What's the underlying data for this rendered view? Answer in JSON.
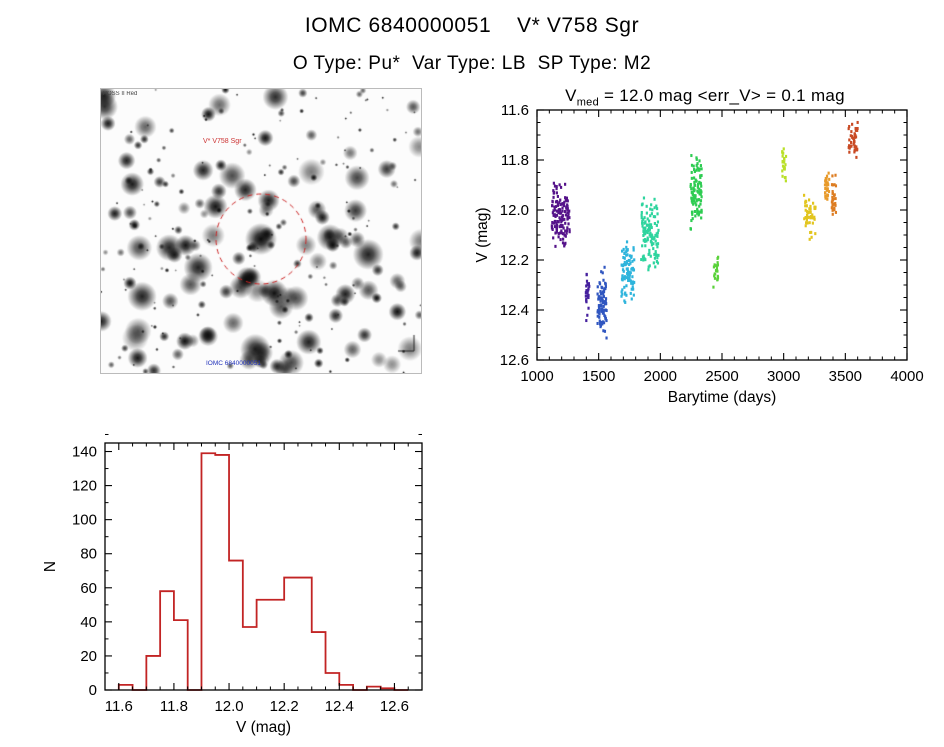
{
  "page": {
    "title": "IOMC 6840000051    V* V758 Sgr",
    "subtitle": "O Type: Pu*  Var Type: LB  SP Type: M2"
  },
  "finder": {
    "survey_label": "POSS II Red",
    "target_label": "V* V758 Sgr",
    "coord_label": "IOMC 6840000051",
    "circle_color": "#cc2222",
    "seed": 7,
    "star_count": 270
  },
  "chart_data": [
    {
      "type": "scatter",
      "title_prefix": "V",
      "title_sub": "med",
      "title_rest": " = 12.0 mag <err_V> = 0.1 mag",
      "xlabel": "Barytime (days)",
      "ylabel": "V (mag)",
      "xlim": [
        1000,
        4000
      ],
      "ylim": [
        11.6,
        12.6
      ],
      "y_axis_note": "magnitude axis, brighter (11.6) at top",
      "xticks": [
        {
          "v": 1000,
          "label": "1000"
        },
        {
          "v": 1500,
          "label": "1500"
        },
        {
          "v": 2000,
          "label": "2000"
        },
        {
          "v": 2500,
          "label": "2500"
        },
        {
          "v": 3000,
          "label": "3000"
        },
        {
          "v": 3500,
          "label": "3500"
        },
        {
          "v": 4000,
          "label": "4000"
        }
      ],
      "yticks": [
        {
          "v": 11.6,
          "label": "11.6"
        },
        {
          "v": 11.8,
          "label": "11.8"
        },
        {
          "v": 12.0,
          "label": "12.0"
        },
        {
          "v": 12.2,
          "label": "12.2"
        },
        {
          "v": 12.4,
          "label": "12.4"
        },
        {
          "v": 12.6,
          "label": "12.6"
        }
      ],
      "x_minor_step": 100,
      "y_minor_step": 0.05,
      "point_seed": 42,
      "clusters": [
        {
          "x": [
            1120,
            1265
          ],
          "v": [
            11.88,
            12.16
          ],
          "color": "#55138a",
          "n": 130
        },
        {
          "x": [
            1395,
            1425
          ],
          "v": [
            12.18,
            12.47
          ],
          "color": "#46219e",
          "n": 28
        },
        {
          "x": [
            1490,
            1565
          ],
          "v": [
            12.22,
            12.52
          ],
          "color": "#3056c0",
          "n": 85
        },
        {
          "x": [
            1685,
            1790
          ],
          "v": [
            12.1,
            12.38
          ],
          "color": "#2eb4dc",
          "n": 95
        },
        {
          "x": [
            1845,
            1985
          ],
          "v": [
            11.94,
            12.26
          ],
          "color": "#2ed49e",
          "n": 115
        },
        {
          "x": [
            2245,
            2335
          ],
          "v": [
            11.75,
            12.12
          ],
          "color": "#2ecc52",
          "n": 100
        },
        {
          "x": [
            2430,
            2470
          ],
          "v": [
            12.17,
            12.33
          ],
          "color": "#5ad23a",
          "n": 22
        },
        {
          "x": [
            2985,
            3020
          ],
          "v": [
            11.74,
            11.9
          ],
          "color": "#b9e029",
          "n": 22
        },
        {
          "x": [
            3165,
            3260
          ],
          "v": [
            11.93,
            12.12
          ],
          "color": "#e2c51f",
          "n": 48
        },
        {
          "x": [
            3335,
            3370
          ],
          "v": [
            11.83,
            11.97
          ],
          "color": "#e89a2a",
          "n": 30
        },
        {
          "x": [
            3390,
            3425
          ],
          "v": [
            11.85,
            12.04
          ],
          "color": "#dd7d22",
          "n": 30
        },
        {
          "x": [
            3525,
            3600
          ],
          "v": [
            11.64,
            11.8
          ],
          "color": "#c94a24",
          "n": 42
        }
      ]
    },
    {
      "type": "bar",
      "style": "step-outline",
      "color": "#c22424",
      "xlabel": "V (mag)",
      "ylabel": "N",
      "xlim": [
        11.55,
        12.7
      ],
      "ylim": [
        0,
        145
      ],
      "xticks": [
        {
          "v": 11.6,
          "label": "11.6"
        },
        {
          "v": 11.8,
          "label": "11.8"
        },
        {
          "v": 12.0,
          "label": "12.0"
        },
        {
          "v": 12.2,
          "label": "12.2"
        },
        {
          "v": 12.4,
          "label": "12.4"
        },
        {
          "v": 12.6,
          "label": "12.6"
        }
      ],
      "yticks": [
        {
          "v": 0,
          "label": "0"
        },
        {
          "v": 20,
          "label": "20"
        },
        {
          "v": 40,
          "label": "40"
        },
        {
          "v": 60,
          "label": "60"
        },
        {
          "v": 80,
          "label": "80"
        },
        {
          "v": 100,
          "label": "100"
        },
        {
          "v": 120,
          "label": "120"
        },
        {
          "v": 140,
          "label": "140"
        }
      ],
      "x_minor_step": 0.05,
      "y_minor_step": 10,
      "bin_width": 0.05,
      "bins": [
        {
          "x": 11.6,
          "n": 3
        },
        {
          "x": 11.65,
          "n": 0
        },
        {
          "x": 11.7,
          "n": 20
        },
        {
          "x": 11.75,
          "n": 58
        },
        {
          "x": 11.8,
          "n": 41
        },
        {
          "x": 11.85,
          "n": 0
        },
        {
          "x": 11.9,
          "n": 139
        },
        {
          "x": 11.95,
          "n": 138
        },
        {
          "x": 12.0,
          "n": 76
        },
        {
          "x": 12.05,
          "n": 37
        },
        {
          "x": 12.1,
          "n": 53
        },
        {
          "x": 12.15,
          "n": 53
        },
        {
          "x": 12.2,
          "n": 66
        },
        {
          "x": 12.25,
          "n": 66
        },
        {
          "x": 12.3,
          "n": 34
        },
        {
          "x": 12.35,
          "n": 10
        },
        {
          "x": 12.4,
          "n": 3
        },
        {
          "x": 12.45,
          "n": 0
        },
        {
          "x": 12.5,
          "n": 2
        },
        {
          "x": 12.55,
          "n": 1
        },
        {
          "x": 12.6,
          "n": 0
        }
      ]
    }
  ]
}
